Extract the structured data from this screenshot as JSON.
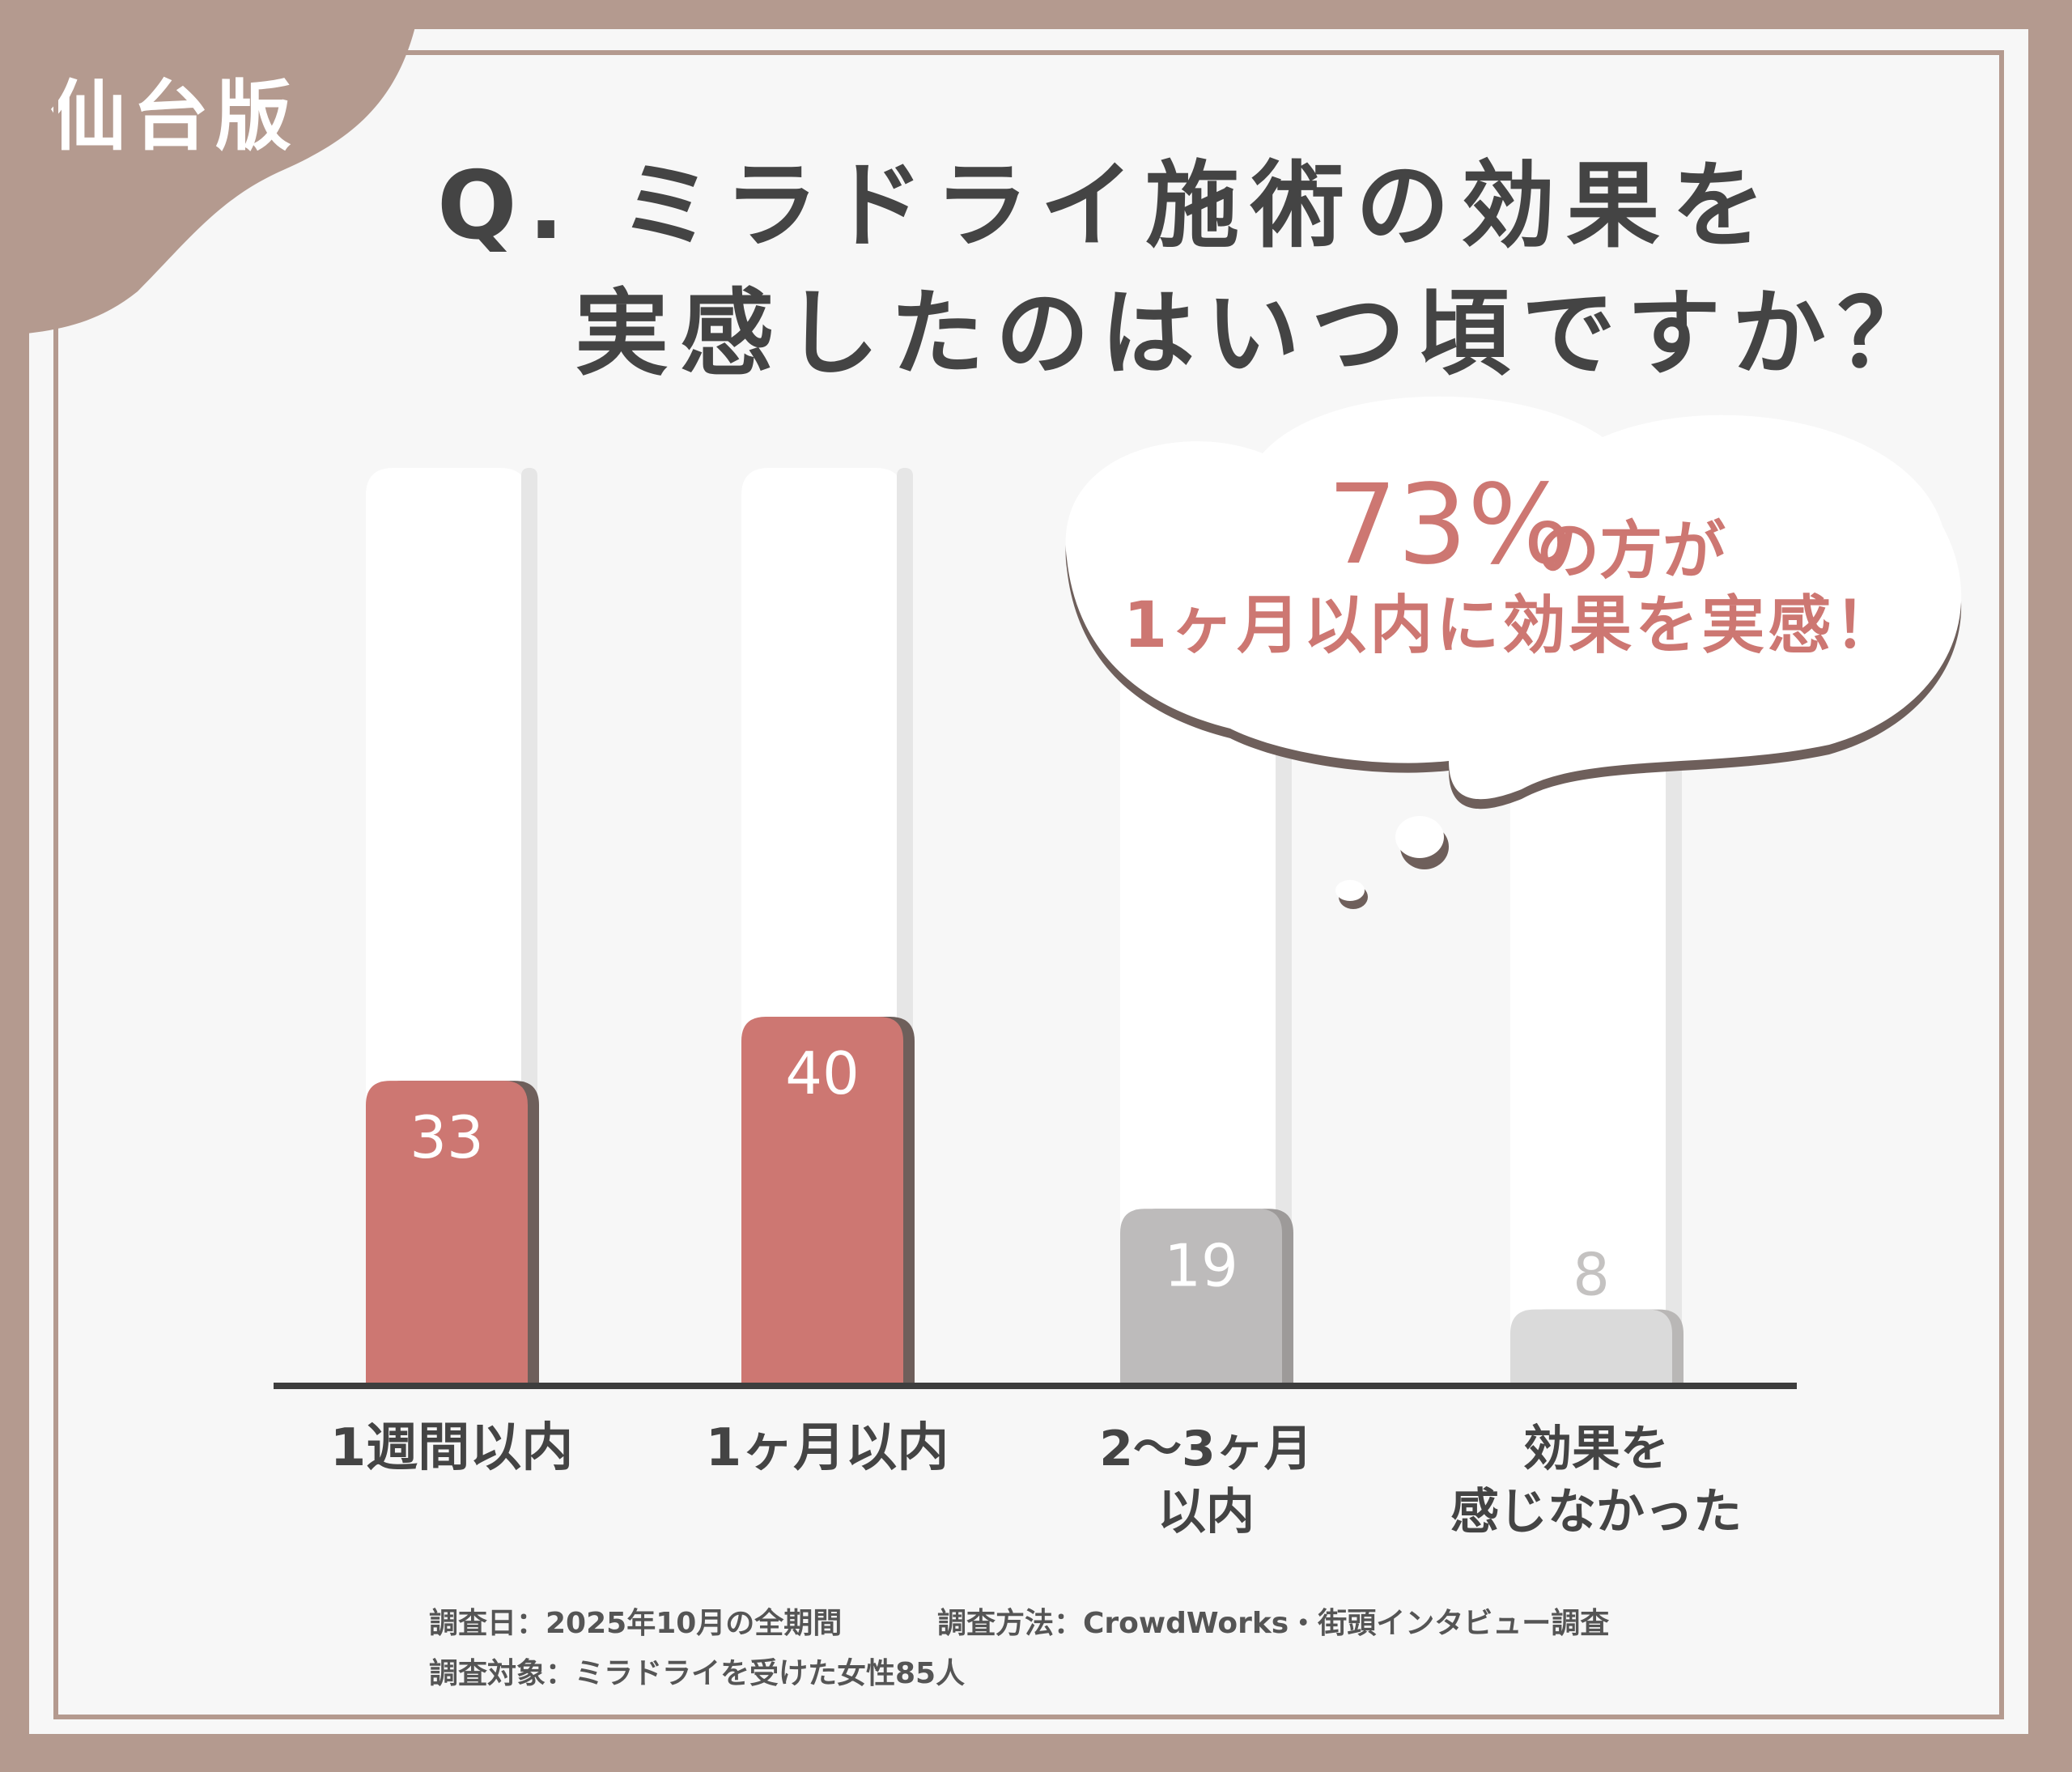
{
  "badge": "仙台版",
  "title": {
    "line1": "Q. ミラドライ施術の効果を",
    "line2": "実感したのはいつ頃ですか？"
  },
  "callout": {
    "percent": "73%",
    "percent_suffix": "の方が",
    "line2": "1ヶ月以内に効果を実感！"
  },
  "footer": {
    "date": "調査日：2025年10月の全期間",
    "method": "調査方法：CrowdWorks・街頭インタビュー調査",
    "subject": "調査対象：ミラドライを受けた女性85人"
  },
  "colors": {
    "highlight": "#cd7772",
    "highlight_shadow": "#6e5f5b",
    "muted": "#bdbbbb",
    "muted_light": "#dadada",
    "frame": "#b49a8f",
    "text": "#444444"
  },
  "chart_data": {
    "type": "bar",
    "categories": [
      "1週間以内",
      "1ヶ月以内",
      "2〜3ヶ月\n以内",
      "効果を\n感じなかった"
    ],
    "values": [
      33,
      40,
      19,
      8
    ],
    "ylim": [
      0,
      100
    ],
    "grid": false,
    "legend": "none"
  }
}
